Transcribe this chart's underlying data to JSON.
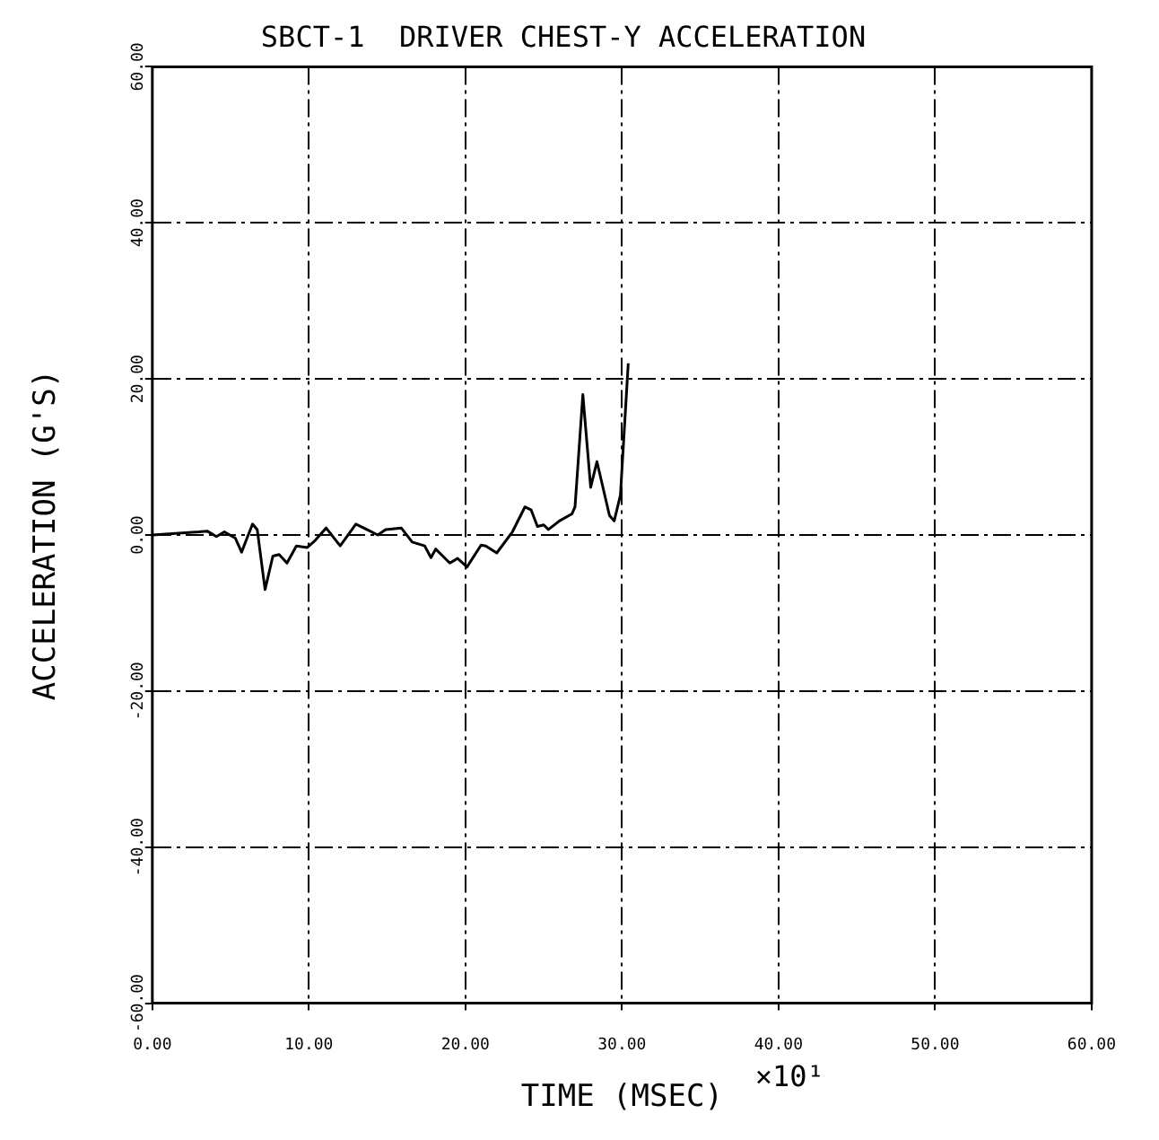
{
  "chart_data": {
    "type": "line",
    "title": "SBCT-1  DRIVER CHEST-Y ACCELERATION",
    "xlabel": "TIME (MSEC)",
    "ylabel": "ACCELERATION (G'S)",
    "annotations": [
      "×10¹"
    ],
    "series": [
      {
        "color": "#000000",
        "x": [
          0,
          2.96,
          3.5,
          4.1,
          4.6,
          5.3,
          5.7,
          6.4,
          6.7,
          7.2,
          7.7,
          8.1,
          8.6,
          9.2,
          9.9,
          10.4,
          11.1,
          12.0,
          13.0,
          13.7,
          14.4,
          14.9,
          15.9,
          16.6,
          17.4,
          17.8,
          18.1,
          19.0,
          19.5,
          20.1,
          21.0,
          21.3,
          22.0,
          23.0,
          23.8,
          24.2,
          24.6,
          25.0,
          25.3,
          26.0,
          26.8,
          27.0,
          27.5,
          28.0,
          28.4,
          29.2,
          29.5,
          29.9,
          30.4
        ],
        "values": [
          0,
          0.4,
          0.5,
          -0.2,
          0.4,
          -0.4,
          -2.2,
          1.4,
          0.7,
          -7.0,
          -2.7,
          -2.5,
          -3.6,
          -1.4,
          -1.6,
          -0.7,
          0.9,
          -1.4,
          1.4,
          0.7,
          0,
          0.7,
          0.9,
          -0.9,
          -1.4,
          -2.9,
          -1.8,
          -3.6,
          -3.0,
          -4.1,
          -1.3,
          -1.4,
          -2.3,
          0.4,
          3.6,
          3.2,
          1.1,
          1.3,
          0.7,
          1.8,
          2.7,
          3.6,
          18,
          6.1,
          9.4,
          2.5,
          1.8,
          5.1,
          22
        ]
      }
    ],
    "xlim": [
      0,
      60
    ],
    "xticks": [
      {
        "value": 0,
        "label": "0.00"
      },
      {
        "value": 10,
        "label": "10.00"
      },
      {
        "value": 20,
        "label": "20.00"
      },
      {
        "value": 30,
        "label": "30.00"
      },
      {
        "value": 40,
        "label": "40.00"
      },
      {
        "value": 50,
        "label": "50.00"
      },
      {
        "value": 60,
        "label": "60.00"
      }
    ],
    "ylim": [
      -60,
      60
    ],
    "yticks": [
      {
        "value": -60,
        "label": "-60.00"
      },
      {
        "value": -40,
        "label": "-40.00"
      },
      {
        "value": -20,
        "label": "-20.00"
      },
      {
        "value": 0,
        "label": "0.00"
      },
      {
        "value": 20,
        "label": "20.00"
      },
      {
        "value": 40,
        "label": "40.00"
      },
      {
        "value": 60,
        "label": "60.00"
      }
    ],
    "grid": true,
    "legend": false,
    "marker": "none",
    "line_style": "solid"
  }
}
